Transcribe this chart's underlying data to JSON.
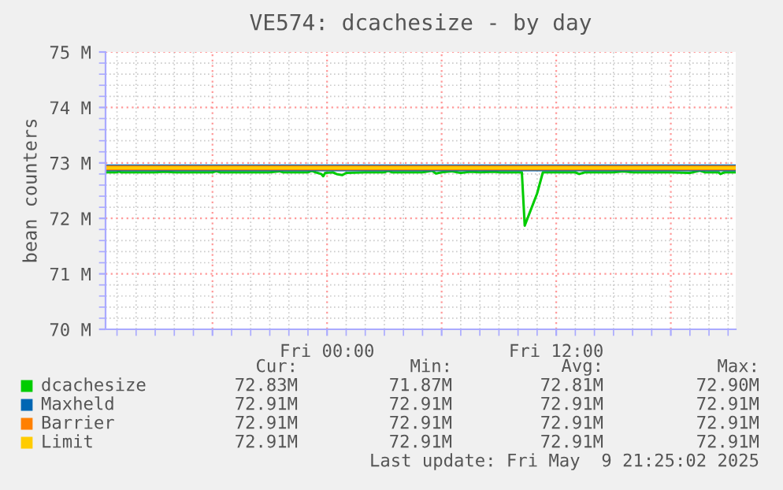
{
  "chart_data": {
    "type": "line",
    "title": "VE574: dcachesize - by day",
    "ylabel": "bean counters",
    "x": [
      "2025-05-08T12:24",
      "2025-05-08T13:00",
      "2025-05-08T13:06",
      "2025-05-08T13:12",
      "2025-05-08T15:00",
      "2025-05-08T15:30",
      "2025-05-08T16:00",
      "2025-05-08T18:00",
      "2025-05-08T18:12",
      "2025-05-08T18:24",
      "2025-05-08T21:00",
      "2025-05-08T21:30",
      "2025-05-08T21:42",
      "2025-05-08T23:00",
      "2025-05-08T23:12",
      "2025-05-08T23:24",
      "2025-05-08T23:42",
      "2025-05-08T23:48",
      "2025-05-08T23:54",
      "2025-05-09T00:18",
      "2025-05-09T00:30",
      "2025-05-09T00:48",
      "2025-05-09T01:00",
      "2025-05-09T02:00",
      "2025-05-09T03:00",
      "2025-05-09T03:12",
      "2025-05-09T03:24",
      "2025-05-09T05:00",
      "2025-05-09T05:30",
      "2025-05-09T05:42",
      "2025-05-09T06:00",
      "2025-05-09T06:30",
      "2025-05-09T07:00",
      "2025-05-09T07:30",
      "2025-05-09T08:00",
      "2025-05-09T08:48",
      "2025-05-09T09:00",
      "2025-05-09T10:12",
      "2025-05-09T10:21",
      "2025-05-09T11:00",
      "2025-05-09T11:18",
      "2025-05-09T12:00",
      "2025-05-09T13:00",
      "2025-05-09T13:12",
      "2025-05-09T13:30",
      "2025-05-09T15:00",
      "2025-05-09T15:30",
      "2025-05-09T16:00",
      "2025-05-09T18:00",
      "2025-05-09T19:00",
      "2025-05-09T19:30",
      "2025-05-09T19:48",
      "2025-05-09T20:30",
      "2025-05-09T20:36",
      "2025-05-09T20:48",
      "2025-05-09T21:24"
    ],
    "series": [
      {
        "name": "dcachesize",
        "color": "#00cc00",
        "values": [
          72.83,
          72.83,
          72.85,
          72.83,
          72.83,
          72.84,
          72.83,
          72.83,
          72.85,
          72.83,
          72.83,
          72.85,
          72.83,
          72.83,
          72.86,
          72.83,
          72.8,
          72.76,
          72.82,
          72.83,
          72.8,
          72.78,
          72.82,
          72.83,
          72.83,
          72.86,
          72.83,
          72.83,
          72.86,
          72.81,
          72.83,
          72.85,
          72.82,
          72.84,
          72.83,
          72.84,
          72.83,
          72.83,
          71.87,
          72.45,
          72.83,
          72.83,
          72.83,
          72.8,
          72.83,
          72.83,
          72.85,
          72.83,
          72.83,
          72.82,
          72.86,
          72.83,
          72.83,
          72.8,
          72.83,
          72.83
        ]
      },
      {
        "name": "Maxheld",
        "color": "#0066b3",
        "x": [
          "2025-05-08T12:24",
          "2025-05-09T21:24"
        ],
        "values": [
          72.91,
          72.91
        ]
      },
      {
        "name": "Barrier",
        "color": "#ff8000",
        "x": [
          "2025-05-08T12:24",
          "2025-05-09T21:24"
        ],
        "values": [
          72.91,
          72.91
        ]
      },
      {
        "name": "Limit",
        "color": "#ffcc00",
        "x": [
          "2025-05-08T12:24",
          "2025-05-09T21:24"
        ],
        "values": [
          72.91,
          72.91
        ]
      }
    ],
    "xlim": [
      "2025-05-08T12:24",
      "2025-05-09T21:24"
    ],
    "xticks": [
      {
        "value": "2025-05-08T18:00",
        "label": null
      },
      {
        "value": "2025-05-09T00:00",
        "label": "Fri 00:00"
      },
      {
        "value": "2025-05-09T06:00",
        "label": null
      },
      {
        "value": "2025-05-09T12:00",
        "label": "Fri 12:00"
      },
      {
        "value": "2025-05-09T18:00",
        "label": null
      }
    ],
    "ylim": [
      70,
      75
    ],
    "yticks": [
      {
        "value": 70,
        "label": "70 M"
      },
      {
        "value": 71,
        "label": "71 M"
      },
      {
        "value": 72,
        "label": "72 M"
      },
      {
        "value": 73,
        "label": "73 M"
      },
      {
        "value": 74,
        "label": "74 M"
      },
      {
        "value": 75,
        "label": "75 M"
      }
    ],
    "grid": true,
    "legend": "bottom left",
    "annotations": [
      "Cur:",
      "Min:",
      "Avg:",
      "Max:",
      "72.83M",
      "71.87M",
      "72.81M",
      "72.90M",
      "72.91M",
      "72.91M",
      "72.91M",
      "72.91M",
      "72.91M",
      "72.91M",
      "72.91M",
      "72.91M",
      "72.91M",
      "72.91M",
      "72.91M",
      "72.91M",
      "Last update: Fri May  9 21:25:02 2025"
    ]
  }
}
